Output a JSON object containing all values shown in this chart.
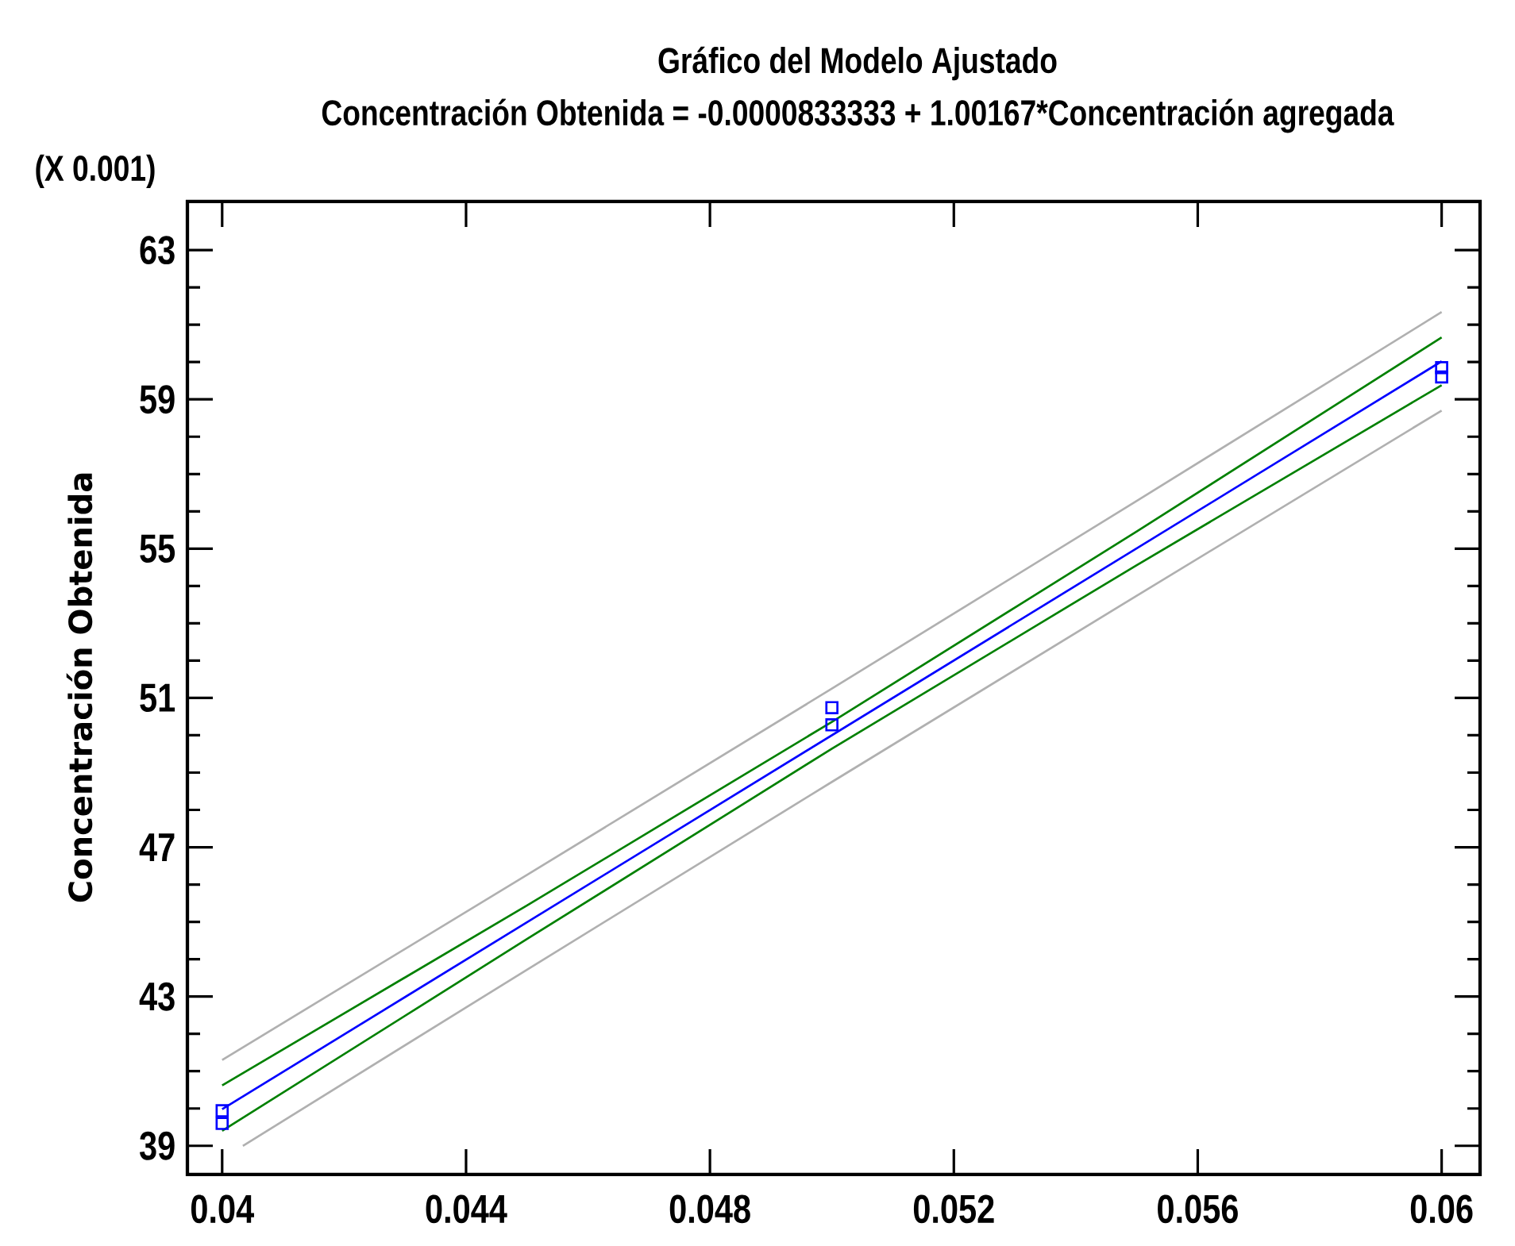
{
  "chart_data": {
    "type": "line",
    "title": "Gráfico del Modelo Ajustado",
    "subtitle": "Concentración Obtenida = -0.0000833333 + 1.00167*Concentración agregada",
    "ylabel": "Concentración Obtenida",
    "annotations": [
      "(X 0.001)"
    ],
    "xlim": [
      0.03943,
      0.06063
    ],
    "ylim": [
      38.23,
      64.3
    ],
    "xticks": [
      0.04,
      0.044,
      0.048,
      0.052,
      0.056,
      0.06
    ],
    "yticks": [
      39,
      43,
      47,
      51,
      55,
      59,
      63
    ],
    "grid": false,
    "line_style": "solid",
    "marker": "none",
    "series": [
      {
        "color": "#b0b0b0",
        "x": [
          0.04,
          0.045,
          0.05,
          0.055,
          0.06
        ],
        "values": [
          41.3,
          46.26,
          51.25,
          56.28,
          61.34
        ]
      },
      {
        "color": "#b0b0b0",
        "x": [
          0.04034,
          0.045,
          0.05,
          0.055,
          0.06
        ],
        "values": [
          39.0,
          43.72,
          48.75,
          53.74,
          58.7
        ]
      },
      {
        "color": "#008000",
        "x": [
          0.04,
          0.045,
          0.05,
          0.055,
          0.06
        ],
        "values": [
          40.62,
          45.44,
          50.36,
          55.46,
          60.66
        ]
      },
      {
        "color": "#008000",
        "x": [
          0.04,
          0.045,
          0.05,
          0.055,
          0.06
        ],
        "values": [
          39.4,
          44.54,
          49.64,
          54.56,
          59.38
        ]
      },
      {
        "color": "#0000ff",
        "x": [
          0.04,
          0.045,
          0.05,
          0.055,
          0.06
        ],
        "values": [
          39.98,
          44.99,
          50.0,
          55.01,
          60.02
        ]
      },
      {
        "type": "scatter",
        "marker": "square",
        "color": "#0000ff",
        "x": [
          0.04,
          0.04,
          0.05,
          0.05,
          0.06,
          0.06
        ],
        "values": [
          39.94,
          39.6,
          50.74,
          50.28,
          59.85,
          59.6
        ]
      }
    ]
  }
}
